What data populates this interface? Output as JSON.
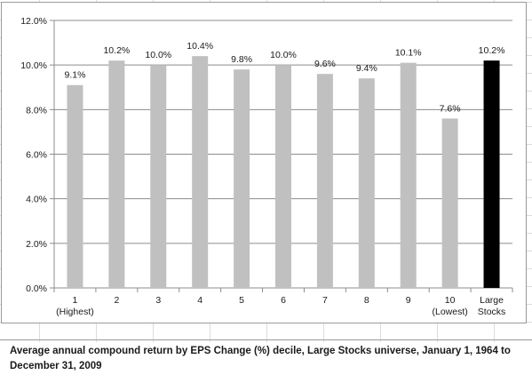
{
  "caption": "Average annual compound return by EPS Change (%) decile, Large Stocks universe, January 1, 1964 to December 31, 2009",
  "colors": {
    "bar": "#c0c0c0",
    "highlight_bar": "#000000",
    "gridline": "#8c8c8c",
    "text": "#1a1a1a"
  },
  "chart_data": {
    "type": "bar",
    "categories": [
      "1\n(Highest)",
      "2",
      "3",
      "4",
      "5",
      "6",
      "7",
      "8",
      "9",
      "10\n(Lowest)",
      "Large\nStocks"
    ],
    "values": [
      9.1,
      10.2,
      10.0,
      10.4,
      9.8,
      10.0,
      9.6,
      9.4,
      10.1,
      7.6,
      10.2
    ],
    "data_labels": [
      "9.1%",
      "10.2%",
      "10.0%",
      "10.4%",
      "9.8%",
      "10.0%",
      "9.6%",
      "9.4%",
      "10.1%",
      "7.6%",
      "10.2%"
    ],
    "highlight_index": 10,
    "ylim": [
      0,
      12
    ],
    "yticks": [
      0,
      2,
      4,
      6,
      8,
      10,
      12
    ],
    "ytick_labels": [
      "0.0%",
      "2.0%",
      "4.0%",
      "6.0%",
      "8.0%",
      "10.0%",
      "12.0%"
    ],
    "grid": true,
    "legend": "none",
    "title": "",
    "xlabel": "",
    "ylabel": ""
  }
}
